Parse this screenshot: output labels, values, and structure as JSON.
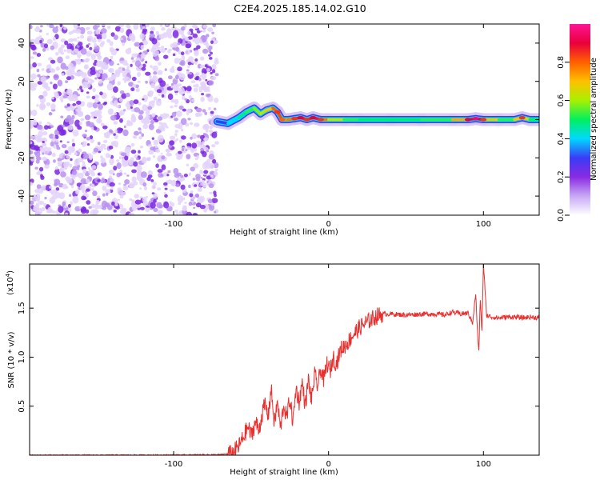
{
  "figure": {
    "title": "C2E4.2025.185.14.02.G10"
  },
  "chart_data": [
    {
      "type": "heatmap",
      "xlabel": "Height of straight line (km)",
      "ylabel": "Frequency (Hz)",
      "xlim": [
        -193,
        136
      ],
      "ylim": [
        -50,
        50
      ],
      "xticks": [
        -100,
        0,
        100
      ],
      "xtick_labels": [
        "-100",
        "0",
        "100"
      ],
      "yticks": [
        -40,
        -20,
        0,
        20,
        40
      ],
      "ytick_labels": [
        "-40",
        "-20",
        "0",
        "20",
        "40"
      ],
      "noise_region_x": [
        -193,
        -72
      ],
      "ridge": {
        "x": [
          -72,
          -65,
          -58,
          -53,
          -48,
          -44,
          -40,
          -36,
          -33,
          -30,
          -26,
          -22,
          -18,
          -14,
          -10,
          -5,
          0,
          10,
          20,
          40,
          60,
          80,
          90,
          95,
          100,
          110,
          120,
          125,
          130,
          136
        ],
        "freq": [
          -1,
          -2,
          1,
          4,
          6,
          3,
          5,
          6,
          4,
          0,
          0,
          0.5,
          1,
          0,
          1,
          0,
          0,
          0,
          0,
          0,
          0,
          0,
          0,
          0.5,
          0,
          0,
          0,
          1,
          0,
          0
        ],
        "amplitude": [
          0.25,
          0.35,
          0.45,
          0.5,
          0.55,
          0.6,
          0.65,
          0.75,
          0.85,
          0.8,
          0.7,
          0.85,
          0.9,
          0.85,
          0.9,
          0.85,
          0.7,
          0.55,
          0.5,
          0.5,
          0.5,
          0.55,
          0.9,
          0.95,
          0.85,
          0.5,
          0.55,
          0.85,
          0.5,
          0.5
        ]
      },
      "colorbar": {
        "label": "Normalized spectral amplitude",
        "range": [
          0,
          1
        ],
        "ticks": [
          0.0,
          0.2,
          0.4,
          0.6,
          0.8
        ],
        "tick_labels": [
          "0.0",
          "0.2",
          "0.4",
          "0.6",
          "0.8"
        ],
        "colormap": [
          "#ffffff",
          "#c8a8f5",
          "#8a2be2",
          "#3a3cf5",
          "#00d8ff",
          "#00f060",
          "#a8f000",
          "#ffc000",
          "#ff6000",
          "#e8003c",
          "#ff1493"
        ]
      }
    },
    {
      "type": "line",
      "xlabel": "Height of straight line (km)",
      "ylabel": "SNR (10 * v/v)",
      "y_multiplier": "(x10",
      "y_multiplier_exp": "4",
      "y_multiplier_close": ")",
      "xlim": [
        -193,
        136
      ],
      "ylim": [
        0,
        19500
      ],
      "xticks": [
        -100,
        0,
        100
      ],
      "xtick_labels": [
        "-100",
        "0",
        "100"
      ],
      "yticks": [
        5000,
        10000,
        15000
      ],
      "ytick_labels": [
        "0.5",
        "1.0",
        "1.5"
      ],
      "series": [
        {
          "color": "#e8302f",
          "x": [
            -193,
            -150,
            -100,
            -70,
            -62,
            -58,
            -55,
            -52,
            -50,
            -47,
            -45,
            -43,
            -41,
            -39,
            -37,
            -35,
            -33,
            -31,
            -29,
            -27,
            -25,
            -23,
            -21,
            -19,
            -17,
            -15,
            -13,
            -11,
            -9,
            -7,
            -5,
            -3,
            -1,
            1,
            3,
            5,
            8,
            12,
            16,
            20,
            25,
            30,
            35,
            40,
            50,
            60,
            70,
            75,
            80,
            85,
            90,
            93,
            95,
            96,
            97,
            98,
            99,
            100,
            102,
            105,
            110,
            115,
            120,
            125,
            130,
            136
          ],
          "y": [
            0,
            0,
            20,
            50,
            200,
            900,
            1800,
            2900,
            2000,
            3400,
            2500,
            4100,
            5200,
            4000,
            6800,
            3200,
            5400,
            2700,
            5100,
            3800,
            5800,
            3300,
            6900,
            5400,
            7400,
            5000,
            7700,
            5600,
            8200,
            7000,
            8800,
            7600,
            9400,
            8500,
            10000,
            9300,
            10800,
            11400,
            12300,
            13000,
            13600,
            14100,
            14400,
            14400,
            14300,
            14400,
            14400,
            14300,
            14600,
            14400,
            14500,
            13500,
            16500,
            13000,
            10500,
            16000,
            12500,
            19500,
            14300,
            14100,
            14000,
            14100,
            14100,
            14000,
            14100,
            14000
          ]
        }
      ]
    }
  ]
}
